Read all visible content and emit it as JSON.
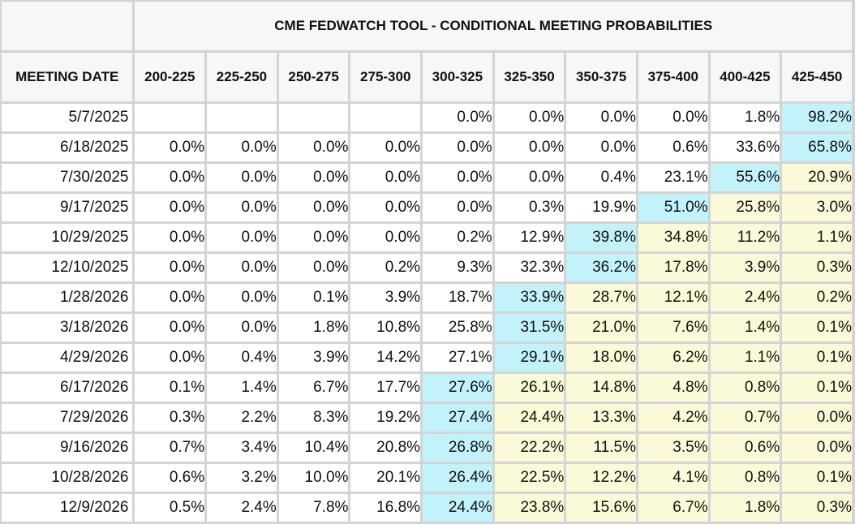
{
  "title": "CME FEDWATCH TOOL - CONDITIONAL MEETING PROBABILITIES",
  "date_header": "MEETING DATE",
  "ranges": [
    "200-225",
    "225-250",
    "250-275",
    "275-300",
    "300-325",
    "325-350",
    "350-375",
    "375-400",
    "400-425",
    "425-450"
  ],
  "rows": [
    {
      "date": "5/7/2025",
      "cells": [
        "",
        "",
        "",
        "",
        "0.0%",
        "0.0%",
        "0.0%",
        "0.0%",
        "1.8%",
        "98.2%"
      ],
      "max": 9
    },
    {
      "date": "6/18/2025",
      "cells": [
        "0.0%",
        "0.0%",
        "0.0%",
        "0.0%",
        "0.0%",
        "0.0%",
        "0.0%",
        "0.6%",
        "33.6%",
        "65.8%"
      ],
      "max": 9
    },
    {
      "date": "7/30/2025",
      "cells": [
        "0.0%",
        "0.0%",
        "0.0%",
        "0.0%",
        "0.0%",
        "0.0%",
        "0.4%",
        "23.1%",
        "55.6%",
        "20.9%"
      ],
      "max": 8
    },
    {
      "date": "9/17/2025",
      "cells": [
        "0.0%",
        "0.0%",
        "0.0%",
        "0.0%",
        "0.0%",
        "0.3%",
        "19.9%",
        "51.0%",
        "25.8%",
        "3.0%"
      ],
      "max": 7
    },
    {
      "date": "10/29/2025",
      "cells": [
        "0.0%",
        "0.0%",
        "0.0%",
        "0.0%",
        "0.2%",
        "12.9%",
        "39.8%",
        "34.8%",
        "11.2%",
        "1.1%"
      ],
      "max": 6
    },
    {
      "date": "12/10/2025",
      "cells": [
        "0.0%",
        "0.0%",
        "0.0%",
        "0.2%",
        "9.3%",
        "32.3%",
        "36.2%",
        "17.8%",
        "3.9%",
        "0.3%"
      ],
      "max": 6
    },
    {
      "date": "1/28/2026",
      "cells": [
        "0.0%",
        "0.0%",
        "0.1%",
        "3.9%",
        "18.7%",
        "33.9%",
        "28.7%",
        "12.1%",
        "2.4%",
        "0.2%"
      ],
      "max": 5
    },
    {
      "date": "3/18/2026",
      "cells": [
        "0.0%",
        "0.0%",
        "1.8%",
        "10.8%",
        "25.8%",
        "31.5%",
        "21.0%",
        "7.6%",
        "1.4%",
        "0.1%"
      ],
      "max": 5
    },
    {
      "date": "4/29/2026",
      "cells": [
        "0.0%",
        "0.4%",
        "3.9%",
        "14.2%",
        "27.1%",
        "29.1%",
        "18.0%",
        "6.2%",
        "1.1%",
        "0.1%"
      ],
      "max": 5
    },
    {
      "date": "6/17/2026",
      "cells": [
        "0.1%",
        "1.4%",
        "6.7%",
        "17.7%",
        "27.6%",
        "26.1%",
        "14.8%",
        "4.8%",
        "0.8%",
        "0.1%"
      ],
      "max": 4
    },
    {
      "date": "7/29/2026",
      "cells": [
        "0.3%",
        "2.2%",
        "8.3%",
        "19.2%",
        "27.4%",
        "24.4%",
        "13.3%",
        "4.2%",
        "0.7%",
        "0.0%"
      ],
      "max": 4
    },
    {
      "date": "9/16/2026",
      "cells": [
        "0.7%",
        "3.4%",
        "10.4%",
        "20.8%",
        "26.8%",
        "22.2%",
        "11.5%",
        "3.5%",
        "0.6%",
        "0.0%"
      ],
      "max": 4
    },
    {
      "date": "10/28/2026",
      "cells": [
        "0.6%",
        "3.2%",
        "10.0%",
        "20.1%",
        "26.4%",
        "22.5%",
        "12.2%",
        "4.1%",
        "0.8%",
        "0.1%"
      ],
      "max": 4
    },
    {
      "date": "12/9/2026",
      "cells": [
        "0.5%",
        "2.4%",
        "7.8%",
        "16.8%",
        "24.4%",
        "23.8%",
        "15.6%",
        "6.7%",
        "1.8%",
        "0.3%"
      ],
      "max": 4
    }
  ],
  "colors": {
    "max_highlight": "#c2f3fb",
    "above_highlight": "#fafad8",
    "header_bg": "#f7f7f7",
    "grid": "#d4d4d4"
  }
}
